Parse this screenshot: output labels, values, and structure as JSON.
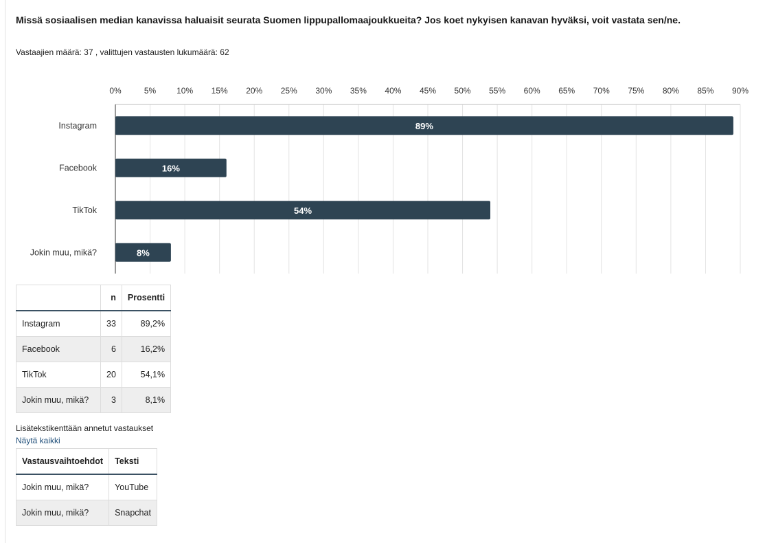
{
  "question": "Missä sosiaalisen median kanavissa haluaisit seurata Suomen lippupallomaajoukkueita? Jos koet nykyisen kanavan hyväksi, voit vastata sen/ne.",
  "summary": "Vastaajien määrä: 37 , valittujen vastausten lukumäärä: 62",
  "colors": {
    "bar": "#2e4453",
    "bar_label": "#ffffff",
    "grid": "#e3e3e3",
    "axis": "#333333"
  },
  "chart_data": {
    "type": "bar",
    "orientation": "horizontal",
    "categories": [
      "Instagram",
      "Facebook",
      "TikTok",
      "Jokin muu, mikä?"
    ],
    "values": [
      89,
      16,
      54,
      8
    ],
    "value_labels": [
      "89%",
      "16%",
      "54%",
      "8%"
    ],
    "xlim": [
      0,
      90
    ],
    "tick_step": 5,
    "tick_suffix": "%",
    "grid": true,
    "axis_position": "top"
  },
  "table1": {
    "headers": [
      "",
      "n",
      "Prosentti"
    ],
    "rows": [
      [
        "Instagram",
        "33",
        "89,2%"
      ],
      [
        "Facebook",
        "6",
        "16,2%"
      ],
      [
        "TikTok",
        "20",
        "54,1%"
      ],
      [
        "Jokin muu, mikä?",
        "3",
        "8,1%"
      ]
    ]
  },
  "notes": {
    "label": "Lisätekstikenttään annetut vastaukset",
    "show_all": "Näytä kaikki"
  },
  "table2": {
    "headers": [
      "Vastausvaihtoehdot",
      "Teksti"
    ],
    "rows": [
      [
        "Jokin muu, mikä?",
        "YouTube"
      ],
      [
        "Jokin muu, mikä?",
        "Snapchat"
      ]
    ]
  }
}
